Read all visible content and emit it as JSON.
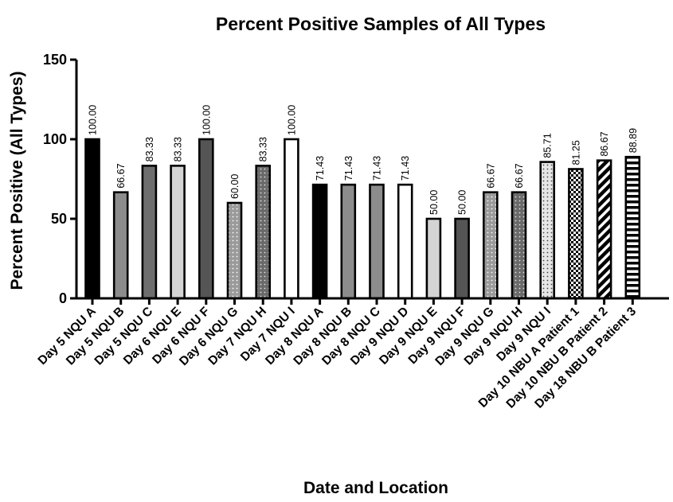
{
  "chart_data": {
    "type": "bar",
    "title": "Percent Positive Samples of All Types",
    "xlabel": "Date and Location",
    "ylabel": "Percent Positive  (All  Types)",
    "ylim": [
      0,
      150
    ],
    "yticks": [
      "0",
      "50",
      "100",
      "150"
    ],
    "grid": false,
    "categories": [
      "Day 5 NQU A",
      "Day 5 NQU B",
      "Day 5 NQU C",
      "Day 6 NQU E",
      "Day 6 NQU F",
      "Day 6 NQU G",
      "Day 7 NQU H",
      "Day 7 NQU I",
      "Day 8 NQU A",
      "Day 8 NQU B",
      "Day 8 NQU C",
      "Day 9 NQU D",
      "Day 9 NQU E",
      "Day 9 NQU F",
      "Day 9 NQU G",
      "Day 9 NQU H",
      "Day 9 NQU I",
      "Day 10 NBU A Patient 1",
      "Day 10 NBU B Patient 2",
      "Day 18 NBU B Patient 3"
    ],
    "values": [
      100.0,
      66.67,
      83.33,
      83.33,
      100.0,
      60.0,
      83.33,
      100.0,
      71.43,
      71.43,
      71.43,
      71.43,
      50.0,
      50.0,
      66.67,
      66.67,
      85.71,
      81.25,
      86.67,
      88.89
    ],
    "value_labels": [
      "100.00",
      "66.67",
      "83.33",
      "83.33",
      "100.00",
      "60.00",
      "83.33",
      "100.00",
      "71.43",
      "71.43",
      "71.43",
      "71.43",
      "50.00",
      "50.00",
      "66.67",
      "66.67",
      "85.71",
      "81.25",
      "86.67",
      "88.89"
    ],
    "bar_fills": [
      "solid-black",
      "solid-gray",
      "solid-darkgray",
      "solid-lightgray",
      "solid-charcoal",
      "dots-gray",
      "dots-darkgray",
      "solid-white",
      "solid-black",
      "solid-gray",
      "solid-gray",
      "solid-white",
      "solid-lightgray",
      "solid-charcoal",
      "dots-gray",
      "dots-darkgray",
      "dots-white",
      "checker",
      "diagonal-stripes",
      "horizontal-stripes"
    ],
    "colors": {
      "solid-black": "#000000",
      "solid-gray": "#8c8c8c",
      "solid-darkgray": "#6e6e6e",
      "solid-lightgray": "#d4d4d4",
      "solid-charcoal": "#555555",
      "solid-white": "#ffffff"
    }
  }
}
